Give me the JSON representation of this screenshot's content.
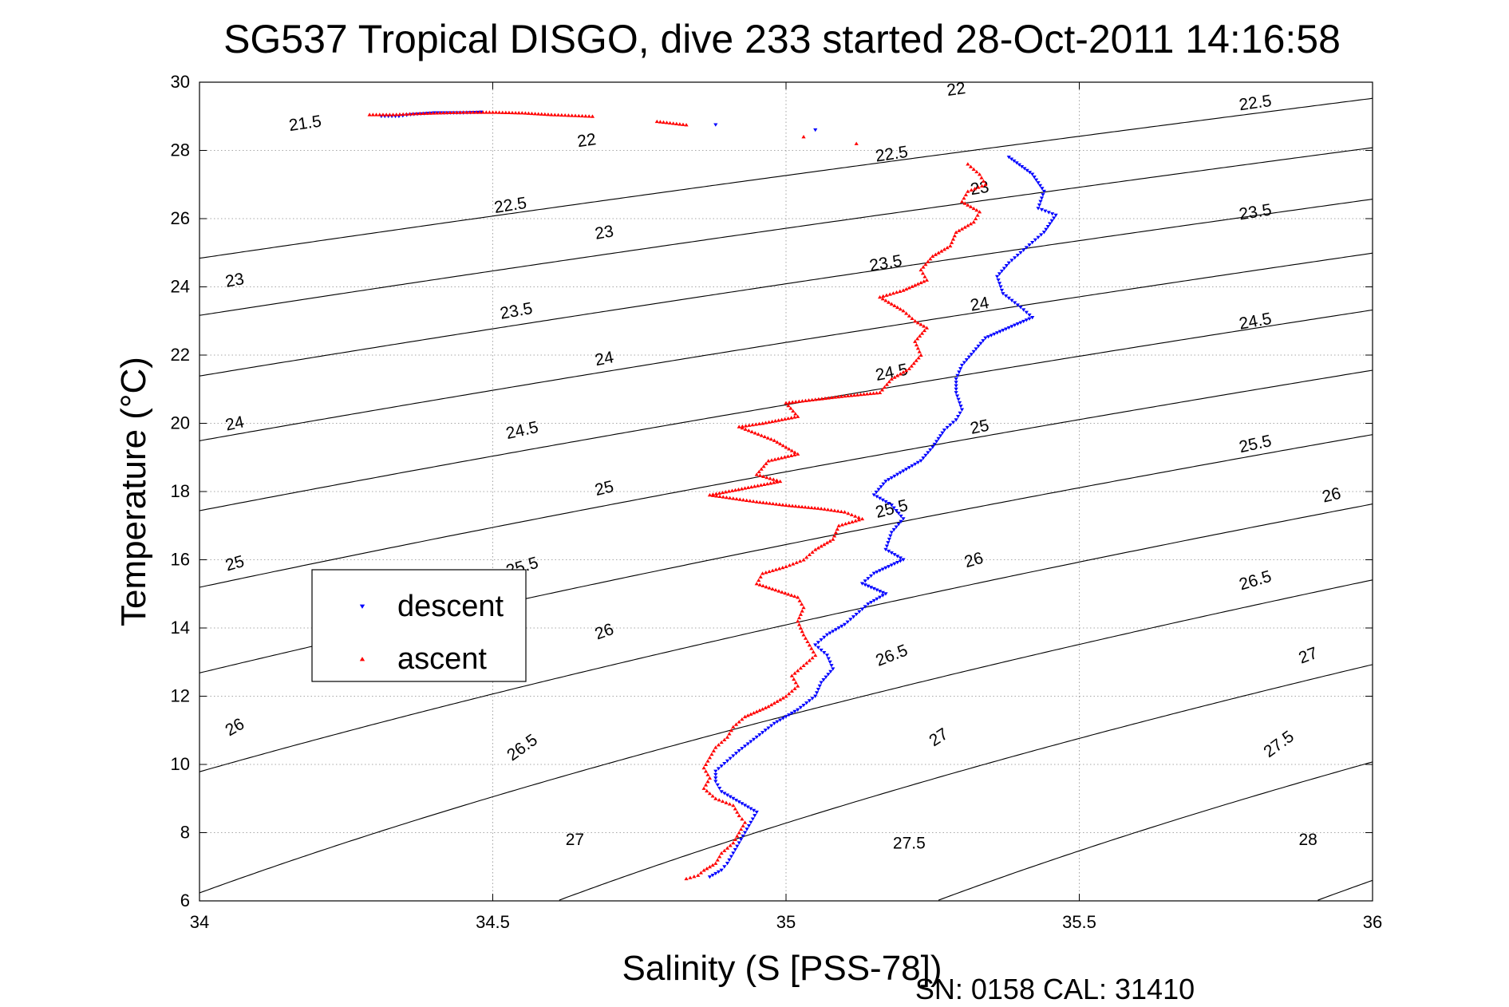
{
  "chart_data": {
    "type": "scatter",
    "title": "SG537 Tropical DISGO, dive 233 started 28-Oct-2011 14:16:58",
    "xlabel": "Salinity (S [PSS-78])",
    "ylabel": "Temperature (°C)",
    "xlim": [
      34,
      36
    ],
    "ylim": [
      6,
      30
    ],
    "xticks": [
      34,
      34.5,
      35,
      35.5,
      36
    ],
    "yticks": [
      6,
      8,
      10,
      12,
      14,
      16,
      18,
      20,
      22,
      24,
      26,
      28,
      30
    ],
    "xtick_labels": [
      "34",
      "34.5",
      "35",
      "35.5",
      "36"
    ],
    "ytick_labels": [
      "6",
      "8",
      "10",
      "12",
      "14",
      "16",
      "18",
      "20",
      "22",
      "24",
      "26",
      "28",
      "30"
    ],
    "grid": true,
    "footer": "SN: 0158  CAL: 31410",
    "legend": {
      "position": "left-middle",
      "entries": [
        {
          "label": "descent",
          "color": "#0000ff",
          "marker": "down-triangle"
        },
        {
          "label": "ascent",
          "color": "#ff0000",
          "marker": "up-triangle"
        }
      ]
    },
    "series": [
      {
        "name": "descent",
        "color": "#0000ff",
        "marker": "down-triangle",
        "points": [
          [
            34.31,
            29.0
          ],
          [
            34.34,
            29.0
          ],
          [
            34.36,
            29.05
          ],
          [
            34.4,
            29.1
          ],
          [
            34.45,
            29.1
          ],
          [
            34.48,
            29.12
          ],
          [
            34.88,
            28.75
          ],
          [
            35.05,
            28.6
          ],
          [
            35.38,
            27.8
          ],
          [
            35.42,
            27.3
          ],
          [
            35.44,
            26.8
          ],
          [
            35.43,
            26.3
          ],
          [
            35.46,
            26.1
          ],
          [
            35.44,
            25.6
          ],
          [
            35.42,
            25.3
          ],
          [
            35.4,
            25.0
          ],
          [
            35.38,
            24.7
          ],
          [
            35.36,
            24.3
          ],
          [
            35.37,
            23.8
          ],
          [
            35.4,
            23.4
          ],
          [
            35.42,
            23.1
          ],
          [
            35.38,
            22.8
          ],
          [
            35.34,
            22.5
          ],
          [
            35.32,
            22.1
          ],
          [
            35.3,
            21.7
          ],
          [
            35.29,
            21.3
          ],
          [
            35.29,
            20.9
          ],
          [
            35.3,
            20.4
          ],
          [
            35.29,
            20.1
          ],
          [
            35.27,
            19.8
          ],
          [
            35.25,
            19.3
          ],
          [
            35.23,
            18.9
          ],
          [
            35.2,
            18.6
          ],
          [
            35.17,
            18.3
          ],
          [
            35.15,
            17.9
          ],
          [
            35.18,
            17.6
          ],
          [
            35.2,
            17.2
          ],
          [
            35.18,
            16.8
          ],
          [
            35.17,
            16.3
          ],
          [
            35.2,
            16.0
          ],
          [
            35.15,
            15.6
          ],
          [
            35.13,
            15.3
          ],
          [
            35.17,
            15.0
          ],
          [
            35.14,
            14.7
          ],
          [
            35.12,
            14.4
          ],
          [
            35.1,
            14.1
          ],
          [
            35.07,
            13.8
          ],
          [
            35.05,
            13.5
          ],
          [
            35.07,
            13.2
          ],
          [
            35.08,
            12.8
          ],
          [
            35.06,
            12.4
          ],
          [
            35.05,
            12.0
          ],
          [
            35.02,
            11.6
          ],
          [
            34.98,
            11.2
          ],
          [
            34.95,
            10.8
          ],
          [
            34.92,
            10.4
          ],
          [
            34.9,
            10.1
          ],
          [
            34.88,
            9.8
          ],
          [
            34.88,
            9.5
          ],
          [
            34.89,
            9.2
          ],
          [
            34.92,
            8.9
          ],
          [
            34.95,
            8.6
          ],
          [
            34.94,
            8.3
          ],
          [
            34.93,
            8.0
          ],
          [
            34.92,
            7.7
          ],
          [
            34.91,
            7.4
          ],
          [
            34.9,
            7.1
          ],
          [
            34.89,
            6.9
          ],
          [
            34.87,
            6.7
          ]
        ]
      },
      {
        "name": "ascent",
        "color": "#ff0000",
        "marker": "up-triangle",
        "points": [
          [
            34.29,
            29.05
          ],
          [
            34.33,
            29.05
          ],
          [
            34.37,
            29.08
          ],
          [
            34.41,
            29.1
          ],
          [
            34.45,
            29.12
          ],
          [
            34.5,
            29.12
          ],
          [
            34.55,
            29.1
          ],
          [
            34.6,
            29.05
          ],
          [
            34.67,
            29.0
          ],
          [
            34.78,
            28.85
          ],
          [
            34.83,
            28.75
          ],
          [
            35.03,
            28.4
          ],
          [
            35.12,
            28.2
          ],
          [
            35.31,
            27.6
          ],
          [
            35.33,
            27.3
          ],
          [
            35.34,
            27.0
          ],
          [
            35.31,
            26.8
          ],
          [
            35.3,
            26.5
          ],
          [
            35.33,
            26.2
          ],
          [
            35.32,
            25.9
          ],
          [
            35.29,
            25.6
          ],
          [
            35.28,
            25.2
          ],
          [
            35.25,
            24.9
          ],
          [
            35.23,
            24.5
          ],
          [
            35.24,
            24.2
          ],
          [
            35.2,
            23.9
          ],
          [
            35.16,
            23.7
          ],
          [
            35.2,
            23.3
          ],
          [
            35.22,
            23.0
          ],
          [
            35.24,
            22.8
          ],
          [
            35.22,
            22.4
          ],
          [
            35.23,
            22.0
          ],
          [
            35.21,
            21.6
          ],
          [
            35.18,
            21.3
          ],
          [
            35.16,
            20.9
          ],
          [
            35.1,
            20.8
          ],
          [
            35.05,
            20.7
          ],
          [
            35.0,
            20.6
          ],
          [
            35.02,
            20.2
          ],
          [
            34.96,
            20.0
          ],
          [
            34.92,
            19.9
          ],
          [
            34.98,
            19.5
          ],
          [
            35.02,
            19.1
          ],
          [
            34.97,
            18.9
          ],
          [
            34.95,
            18.5
          ],
          [
            34.99,
            18.3
          ],
          [
            34.93,
            18.1
          ],
          [
            34.87,
            17.9
          ],
          [
            34.95,
            17.7
          ],
          [
            35.0,
            17.6
          ],
          [
            35.06,
            17.5
          ],
          [
            35.1,
            17.4
          ],
          [
            35.13,
            17.2
          ],
          [
            35.09,
            17.0
          ],
          [
            35.08,
            16.6
          ],
          [
            35.05,
            16.3
          ],
          [
            35.03,
            16.0
          ],
          [
            35.0,
            15.8
          ],
          [
            34.96,
            15.6
          ],
          [
            34.95,
            15.3
          ],
          [
            35.02,
            14.9
          ],
          [
            35.03,
            14.6
          ],
          [
            35.02,
            14.2
          ],
          [
            35.03,
            13.8
          ],
          [
            35.04,
            13.5
          ],
          [
            35.05,
            13.2
          ],
          [
            35.03,
            12.9
          ],
          [
            35.01,
            12.6
          ],
          [
            35.02,
            12.3
          ],
          [
            35.0,
            12.0
          ],
          [
            34.97,
            11.7
          ],
          [
            34.93,
            11.4
          ],
          [
            34.91,
            11.1
          ],
          [
            34.9,
            10.8
          ],
          [
            34.88,
            10.5
          ],
          [
            34.87,
            10.2
          ],
          [
            34.86,
            9.9
          ],
          [
            34.87,
            9.6
          ],
          [
            34.86,
            9.3
          ],
          [
            34.88,
            9.0
          ],
          [
            34.91,
            8.8
          ],
          [
            34.92,
            8.5
          ],
          [
            34.93,
            8.3
          ],
          [
            34.92,
            8.0
          ],
          [
            34.91,
            7.7
          ],
          [
            34.89,
            7.4
          ],
          [
            34.88,
            7.1
          ],
          [
            34.86,
            6.9
          ],
          [
            34.85,
            6.75
          ],
          [
            34.83,
            6.65
          ]
        ]
      }
    ],
    "isopycnals": [
      {
        "sigma": 21.5,
        "labels": [
          {
            "text": "21.5",
            "x": 34.18,
            "y": 28.8
          }
        ]
      },
      {
        "sigma": 22,
        "labels": [
          {
            "text": "22",
            "x": 34.66,
            "y": 28.3
          },
          {
            "text": "22",
            "x": 35.29,
            "y": 29.8
          }
        ]
      },
      {
        "sigma": 22.5,
        "labels": [
          {
            "text": "22.5",
            "x": 34.53,
            "y": 26.4
          },
          {
            "text": "22.5",
            "x": 35.18,
            "y": 27.9
          },
          {
            "text": "22.5",
            "x": 35.8,
            "y": 29.4
          }
        ]
      },
      {
        "sigma": 23,
        "labels": [
          {
            "text": "23",
            "x": 34.06,
            "y": 24.2
          },
          {
            "text": "23",
            "x": 34.69,
            "y": 25.6
          },
          {
            "text": "23",
            "x": 35.33,
            "y": 26.9
          }
        ]
      },
      {
        "sigma": 23.5,
        "labels": [
          {
            "text": "23.5",
            "x": 34.54,
            "y": 23.3
          },
          {
            "text": "23.5",
            "x": 35.17,
            "y": 24.7
          },
          {
            "text": "23.5",
            "x": 35.8,
            "y": 26.2
          }
        ]
      },
      {
        "sigma": 24,
        "labels": [
          {
            "text": "24",
            "x": 34.06,
            "y": 20.0
          },
          {
            "text": "24",
            "x": 34.69,
            "y": 21.9
          },
          {
            "text": "24",
            "x": 35.33,
            "y": 23.5
          }
        ]
      },
      {
        "sigma": 24.5,
        "labels": [
          {
            "text": "24.5",
            "x": 34.55,
            "y": 19.8
          },
          {
            "text": "24.5",
            "x": 35.18,
            "y": 21.5
          },
          {
            "text": "24.5",
            "x": 35.8,
            "y": 23.0
          }
        ]
      },
      {
        "sigma": 25,
        "labels": [
          {
            "text": "25",
            "x": 34.06,
            "y": 15.9
          },
          {
            "text": "25",
            "x": 34.69,
            "y": 18.1
          },
          {
            "text": "25",
            "x": 35.33,
            "y": 19.9
          }
        ]
      },
      {
        "sigma": 25.5,
        "labels": [
          {
            "text": "25.5",
            "x": 34.55,
            "y": 15.8
          },
          {
            "text": "25.5",
            "x": 35.18,
            "y": 17.5
          },
          {
            "text": "25.5",
            "x": 35.8,
            "y": 19.4
          }
        ]
      },
      {
        "sigma": 26,
        "labels": [
          {
            "text": "26",
            "x": 34.06,
            "y": 11.1
          },
          {
            "text": "26",
            "x": 34.69,
            "y": 13.9
          },
          {
            "text": "26",
            "x": 35.32,
            "y": 16.0
          },
          {
            "text": "26",
            "x": 35.93,
            "y": 17.9
          }
        ]
      },
      {
        "sigma": 26.5,
        "labels": [
          {
            "text": "26.5",
            "x": 34.55,
            "y": 10.5
          },
          {
            "text": "26.5",
            "x": 35.18,
            "y": 13.2
          },
          {
            "text": "26.5",
            "x": 35.8,
            "y": 15.4
          }
        ]
      },
      {
        "sigma": 27,
        "labels": [
          {
            "text": "27",
            "x": 34.64,
            "y": 7.8
          },
          {
            "text": "27",
            "x": 35.26,
            "y": 10.8
          },
          {
            "text": "27",
            "x": 35.89,
            "y": 13.2
          }
        ]
      },
      {
        "sigma": 27.5,
        "labels": [
          {
            "text": "27.5",
            "x": 35.21,
            "y": 7.7
          },
          {
            "text": "27.5",
            "x": 35.84,
            "y": 10.6
          }
        ]
      },
      {
        "sigma": 28,
        "labels": [
          {
            "text": "28",
            "x": 35.89,
            "y": 7.8
          }
        ]
      }
    ]
  }
}
